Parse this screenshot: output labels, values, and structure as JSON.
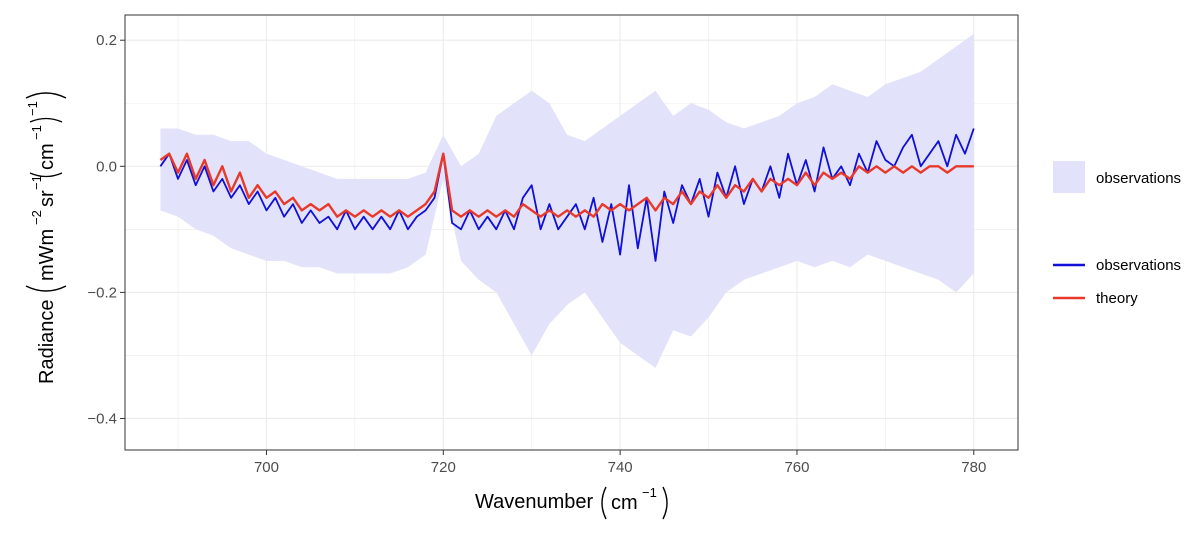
{
  "chart_data": {
    "type": "line",
    "xlabel": "Wavenumber",
    "xunit": "cm",
    "xunit_exp": "−1",
    "ylabel": "Radiance",
    "yunit_main": "mWm",
    "yunit_exp1": "−2",
    "yunit_mid": "sr",
    "yunit_exp2": "−1",
    "yunit_inner": "cm",
    "yunit_exp3": "−1",
    "yunit_exp4": "−1",
    "xlim": [
      684,
      785
    ],
    "ylim": [
      -0.45,
      0.24
    ],
    "xticks": [
      700,
      720,
      740,
      760,
      780
    ],
    "yticks": [
      -0.4,
      -0.2,
      0.0,
      0.2
    ],
    "xtick_labels": [
      "700",
      "720",
      "740",
      "760",
      "780"
    ],
    "ytick_labels": [
      "−0.4",
      "−0.2",
      "0.0",
      "0.2"
    ],
    "grid": true,
    "legend_placement": "right",
    "legend": {
      "band_label": "observations",
      "obs_label": "observations",
      "theory_label": "theory"
    },
    "colors": {
      "band": "#e2e3fa",
      "observations": "#1010d8",
      "theory": "#e8392b",
      "grid": "#ebebeb",
      "panel_border": "#333333"
    },
    "series": [
      {
        "name": "observations",
        "kind": "line",
        "x": [
          688,
          689,
          690,
          691,
          692,
          693,
          694,
          695,
          696,
          697,
          698,
          699,
          700,
          701,
          702,
          703,
          704,
          705,
          706,
          707,
          708,
          709,
          710,
          711,
          712,
          713,
          714,
          715,
          716,
          717,
          718,
          719,
          720,
          721,
          722,
          723,
          724,
          725,
          726,
          727,
          728,
          729,
          730,
          731,
          732,
          733,
          734,
          735,
          736,
          737,
          738,
          739,
          740,
          741,
          742,
          743,
          744,
          745,
          746,
          747,
          748,
          749,
          750,
          751,
          752,
          753,
          754,
          755,
          756,
          757,
          758,
          759,
          760,
          761,
          762,
          763,
          764,
          765,
          766,
          767,
          768,
          769,
          770,
          771,
          772,
          773,
          774,
          775,
          776,
          777,
          778,
          779,
          780
        ],
        "y": [
          0.0,
          0.02,
          -0.02,
          0.01,
          -0.03,
          0.0,
          -0.04,
          -0.02,
          -0.05,
          -0.03,
          -0.06,
          -0.04,
          -0.07,
          -0.05,
          -0.08,
          -0.06,
          -0.09,
          -0.07,
          -0.09,
          -0.08,
          -0.1,
          -0.07,
          -0.1,
          -0.08,
          -0.1,
          -0.08,
          -0.1,
          -0.07,
          -0.1,
          -0.08,
          -0.07,
          -0.05,
          0.02,
          -0.09,
          -0.1,
          -0.07,
          -0.1,
          -0.08,
          -0.1,
          -0.07,
          -0.1,
          -0.05,
          -0.03,
          -0.1,
          -0.06,
          -0.1,
          -0.08,
          -0.06,
          -0.1,
          -0.05,
          -0.12,
          -0.06,
          -0.14,
          -0.03,
          -0.13,
          -0.05,
          -0.15,
          -0.04,
          -0.09,
          -0.03,
          -0.06,
          -0.02,
          -0.08,
          -0.01,
          -0.05,
          0.0,
          -0.06,
          -0.02,
          -0.04,
          0.0,
          -0.05,
          0.02,
          -0.03,
          0.01,
          -0.04,
          0.03,
          -0.02,
          0.0,
          -0.03,
          0.02,
          -0.01,
          0.04,
          0.01,
          0.0,
          0.03,
          0.05,
          0.0,
          0.02,
          0.04,
          0.0,
          0.05,
          0.02,
          0.06
        ]
      },
      {
        "name": "theory",
        "kind": "line",
        "x": [
          688,
          689,
          690,
          691,
          692,
          693,
          694,
          695,
          696,
          697,
          698,
          699,
          700,
          701,
          702,
          703,
          704,
          705,
          706,
          707,
          708,
          709,
          710,
          711,
          712,
          713,
          714,
          715,
          716,
          717,
          718,
          719,
          720,
          721,
          722,
          723,
          724,
          725,
          726,
          727,
          728,
          729,
          730,
          731,
          732,
          733,
          734,
          735,
          736,
          737,
          738,
          739,
          740,
          741,
          742,
          743,
          744,
          745,
          746,
          747,
          748,
          749,
          750,
          751,
          752,
          753,
          754,
          755,
          756,
          757,
          758,
          759,
          760,
          761,
          762,
          763,
          764,
          765,
          766,
          767,
          768,
          769,
          770,
          771,
          772,
          773,
          774,
          775,
          776,
          777,
          778,
          779,
          780
        ],
        "y": [
          0.01,
          0.02,
          -0.01,
          0.02,
          -0.02,
          0.01,
          -0.03,
          0.0,
          -0.04,
          -0.01,
          -0.05,
          -0.03,
          -0.05,
          -0.04,
          -0.06,
          -0.05,
          -0.07,
          -0.06,
          -0.07,
          -0.06,
          -0.08,
          -0.07,
          -0.08,
          -0.07,
          -0.08,
          -0.07,
          -0.08,
          -0.07,
          -0.08,
          -0.07,
          -0.06,
          -0.04,
          0.02,
          -0.07,
          -0.08,
          -0.07,
          -0.08,
          -0.07,
          -0.08,
          -0.07,
          -0.08,
          -0.06,
          -0.07,
          -0.08,
          -0.07,
          -0.08,
          -0.07,
          -0.08,
          -0.07,
          -0.08,
          -0.06,
          -0.07,
          -0.06,
          -0.07,
          -0.06,
          -0.05,
          -0.07,
          -0.05,
          -0.06,
          -0.04,
          -0.06,
          -0.04,
          -0.05,
          -0.03,
          -0.05,
          -0.03,
          -0.04,
          -0.02,
          -0.04,
          -0.02,
          -0.03,
          -0.02,
          -0.03,
          -0.01,
          -0.03,
          -0.01,
          -0.02,
          -0.01,
          -0.02,
          0.0,
          -0.01,
          0.0,
          -0.01,
          0.0,
          -0.01,
          0.0,
          -0.01,
          0.0,
          0.0,
          -0.01,
          0.0,
          0.0,
          0.0
        ]
      },
      {
        "name": "observations",
        "kind": "band",
        "x": [
          688,
          690,
          692,
          694,
          696,
          698,
          700,
          702,
          704,
          706,
          708,
          710,
          712,
          714,
          716,
          718,
          720,
          722,
          724,
          726,
          728,
          730,
          732,
          734,
          736,
          738,
          740,
          742,
          744,
          746,
          748,
          750,
          752,
          754,
          756,
          758,
          760,
          762,
          764,
          766,
          768,
          770,
          772,
          774,
          776,
          778,
          780
        ],
        "lower": [
          -0.07,
          -0.08,
          -0.1,
          -0.11,
          -0.13,
          -0.14,
          -0.15,
          -0.15,
          -0.16,
          -0.16,
          -0.17,
          -0.17,
          -0.17,
          -0.17,
          -0.16,
          -0.14,
          -0.02,
          -0.15,
          -0.18,
          -0.2,
          -0.25,
          -0.3,
          -0.25,
          -0.22,
          -0.2,
          -0.24,
          -0.28,
          -0.3,
          -0.32,
          -0.26,
          -0.27,
          -0.24,
          -0.2,
          -0.18,
          -0.17,
          -0.16,
          -0.15,
          -0.16,
          -0.15,
          -0.16,
          -0.14,
          -0.15,
          -0.16,
          -0.17,
          -0.18,
          -0.2,
          -0.17
        ],
        "upper": [
          0.06,
          0.06,
          0.05,
          0.05,
          0.04,
          0.04,
          0.02,
          0.01,
          0.0,
          -0.01,
          -0.02,
          -0.02,
          -0.02,
          -0.02,
          -0.02,
          -0.01,
          0.05,
          0.0,
          0.02,
          0.08,
          0.1,
          0.12,
          0.1,
          0.05,
          0.04,
          0.06,
          0.08,
          0.1,
          0.12,
          0.08,
          0.1,
          0.09,
          0.07,
          0.06,
          0.07,
          0.08,
          0.1,
          0.11,
          0.13,
          0.12,
          0.11,
          0.13,
          0.14,
          0.15,
          0.17,
          0.19,
          0.21
        ]
      }
    ]
  }
}
